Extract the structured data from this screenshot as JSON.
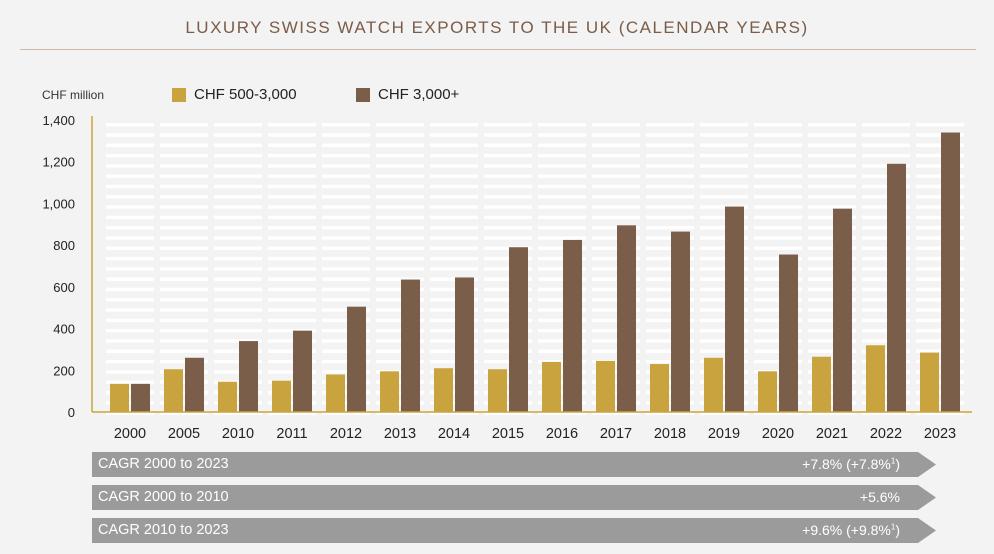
{
  "title": "LUXURY SWISS WATCH EXPORTS TO THE UK (CALENDAR YEARS)",
  "colors": {
    "series1": "#c9a43e",
    "series2": "#7b5e4a",
    "axis": "#c9a43e",
    "title": "#7a5c48",
    "cagr_bar": "#9b9b9b"
  },
  "chart_data": {
    "type": "bar",
    "ylabel": "CHF million",
    "ylim": [
      0,
      1400
    ],
    "yticks": [
      0,
      200,
      400,
      600,
      800,
      1000,
      1200,
      1400
    ],
    "ytick_labels": [
      "0",
      "200",
      "400",
      "600",
      "800",
      "1,000",
      "1,200",
      "1,400"
    ],
    "grid": true,
    "legend_position": "top-left",
    "categories": [
      "2000",
      "2005",
      "2010",
      "2011",
      "2012",
      "2013",
      "2014",
      "2015",
      "2016",
      "2017",
      "2018",
      "2019",
      "2020",
      "2021",
      "2022",
      "2023"
    ],
    "series": [
      {
        "name": "CHF 500-3,000",
        "values": [
          135,
          205,
          145,
          150,
          180,
          195,
          210,
          205,
          240,
          245,
          230,
          260,
          195,
          265,
          320,
          285
        ]
      },
      {
        "name": "CHF 3,000+",
        "values": [
          135,
          260,
          340,
          390,
          505,
          635,
          645,
          790,
          825,
          895,
          865,
          985,
          755,
          975,
          1190,
          1340
        ]
      }
    ]
  },
  "cagr": [
    {
      "label": "CAGR 2000 to 2023",
      "value": "+7.8% (+7.8%",
      "sup": "1",
      "close": ")"
    },
    {
      "label": "CAGR 2000 to 2010",
      "value": "+5.6%",
      "sup": "",
      "close": ""
    },
    {
      "label": "CAGR 2010 to 2023",
      "value": "+9.6% (+9.8%",
      "sup": "1",
      "close": ")"
    }
  ]
}
